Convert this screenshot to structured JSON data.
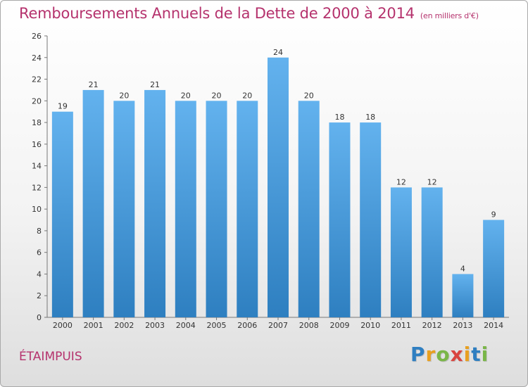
{
  "title": "Remboursements Annuels de la Dette de 2000 à 2014",
  "unit_note": "(en milliers d'€)",
  "commune": "ÉTAIMPUIS",
  "logo": {
    "letters": [
      {
        "ch": "P",
        "color": "#2f7fc1"
      },
      {
        "ch": "r",
        "color": "#e8a020"
      },
      {
        "ch": "o",
        "color": "#7ab648"
      },
      {
        "ch": "x",
        "color": "#d9443f"
      },
      {
        "ch": "i",
        "color": "#e8a020"
      },
      {
        "ch": "t",
        "color": "#2f7fc1"
      },
      {
        "ch": "i",
        "color": "#7ab648"
      }
    ]
  },
  "chart_data": {
    "type": "bar",
    "categories": [
      "2000",
      "2001",
      "2002",
      "2003",
      "2004",
      "2005",
      "2006",
      "2007",
      "2008",
      "2009",
      "2010",
      "2011",
      "2012",
      "2013",
      "2014"
    ],
    "values": [
      19,
      21,
      20,
      21,
      20,
      20,
      20,
      24,
      20,
      18,
      18,
      12,
      12,
      4,
      9
    ],
    "title": "Remboursements Annuels de la Dette de 2000 à 2014",
    "xlabel": "",
    "ylabel": "",
    "ylim": [
      0,
      26
    ],
    "yticks": [
      0,
      2,
      4,
      6,
      8,
      10,
      12,
      14,
      16,
      18,
      20,
      22,
      24,
      26
    ],
    "grid": false,
    "bar_color_top": "#63b2ee",
    "bar_color_bottom": "#2e7fc0",
    "title_color": "#b5326d"
  }
}
